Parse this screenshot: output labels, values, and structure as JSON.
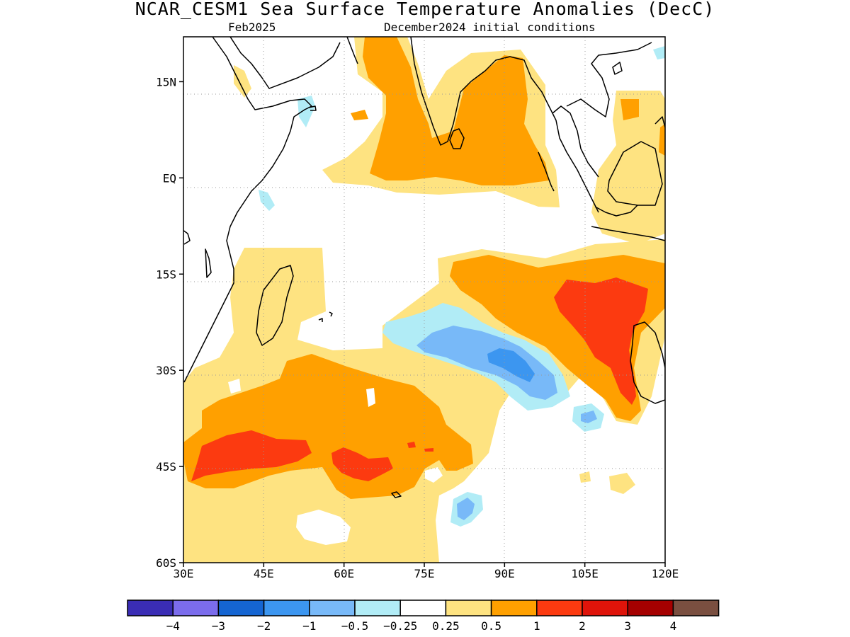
{
  "title": "NCAR_CESM1 Sea Surface Temperature Anomalies (DecC)",
  "subtitle_left": "Feb2025",
  "subtitle_right": "December2024 initial conditions",
  "map": {
    "region": "Indian Ocean",
    "lon_range": [
      30,
      120
    ],
    "lat_range": [
      -60,
      22
    ],
    "gridlines": "dotted",
    "lat_ticks": [
      {
        "value": 15,
        "label": "15N"
      },
      {
        "value": 0,
        "label": "EQ"
      },
      {
        "value": -15,
        "label": "15S"
      },
      {
        "value": -30,
        "label": "30S"
      },
      {
        "value": -45,
        "label": "45S"
      },
      {
        "value": -60,
        "label": "60S"
      }
    ],
    "lon_ticks": [
      {
        "value": 30,
        "label": "30E"
      },
      {
        "value": 45,
        "label": "45E"
      },
      {
        "value": 60,
        "label": "60E"
      },
      {
        "value": 75,
        "label": "75E"
      },
      {
        "value": 90,
        "label": "90E"
      },
      {
        "value": 105,
        "label": "105E"
      },
      {
        "value": 120,
        "label": "120E"
      }
    ]
  },
  "colorbar": {
    "colors": [
      "#3a2db5",
      "#7b6cec",
      "#1565d2",
      "#3c96f0",
      "#78b9f8",
      "#b1ecf6",
      "#ffffff",
      "#fee381",
      "#ffa000",
      "#fc3a10",
      "#df140a",
      "#a50000",
      "#7a4f40"
    ],
    "labels": [
      "−4",
      "−3",
      "−2",
      "−1",
      "−0.5",
      "−0.25",
      "0.25",
      "0.5",
      "1",
      "2",
      "3",
      "4"
    ]
  }
}
